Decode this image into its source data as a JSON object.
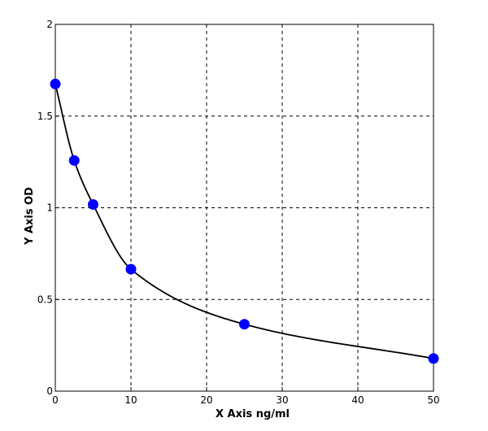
{
  "chart_data": {
    "type": "scatter",
    "xlabel": "X  Axis ng/ml",
    "ylabel": "Y  Axis OD",
    "xlim": [
      0,
      50
    ],
    "ylim": [
      0,
      2
    ],
    "x_ticks": [
      0,
      10,
      20,
      30,
      40,
      50
    ],
    "y_ticks": [
      0,
      0.5,
      1,
      1.5,
      2
    ],
    "x_tick_labels": [
      "0",
      "10",
      "20",
      "30",
      "40",
      "50"
    ],
    "y_tick_labels": [
      "0",
      "0.5",
      "1",
      "1.5",
      "2"
    ],
    "grid": true,
    "series": [
      {
        "x": [
          0,
          2.5,
          5,
          10,
          25,
          50
        ],
        "y": [
          1.675,
          1.258,
          1.018,
          0.665,
          0.365,
          0.178
        ],
        "color": "#0000ff"
      }
    ],
    "fit_curve": {
      "color": "#000000"
    }
  }
}
